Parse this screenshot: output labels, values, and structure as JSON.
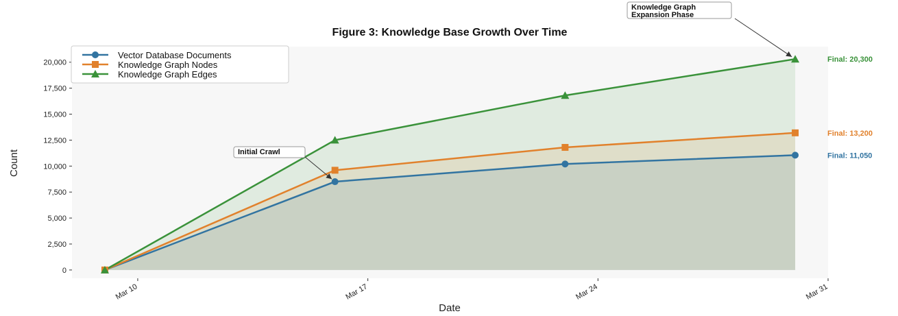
{
  "chart_data": {
    "type": "area",
    "title": "Figure 3: Knowledge Base Growth Over Time",
    "xlabel": "Date",
    "ylabel": "Count",
    "x": [
      "2024-03-09",
      "2024-03-16",
      "2024-03-23",
      "2024-03-30"
    ],
    "xlim": [
      "2024-03-08",
      "2024-03-31"
    ],
    "xticks": [
      {
        "date": "2024-03-10",
        "label": "Mar 10"
      },
      {
        "date": "2024-03-17",
        "label": "Mar 17"
      },
      {
        "date": "2024-03-24",
        "label": "Mar 24"
      },
      {
        "date": "2024-03-31",
        "label": "Mar 31"
      }
    ],
    "ylim": [
      -800,
      21500
    ],
    "yticks": [
      0,
      2500,
      5000,
      7500,
      10000,
      12500,
      15000,
      17500,
      20000
    ],
    "ytick_labels": [
      "0",
      "2,500",
      "5,000",
      "7,500",
      "10,000",
      "12,500",
      "15,000",
      "17,500",
      "20,000"
    ],
    "grid": false,
    "legend_position": "top-left",
    "series": [
      {
        "name": "Vector Database Documents",
        "values": [
          0,
          8500,
          10200,
          11050
        ],
        "color": "#3274a1",
        "marker": "circle",
        "final_label": "Final: 11,050"
      },
      {
        "name": "Knowledge Graph Nodes",
        "values": [
          0,
          9600,
          11800,
          13200
        ],
        "color": "#e1812c",
        "marker": "square",
        "final_label": "Final: 13,200"
      },
      {
        "name": "Knowledge Graph Edges",
        "values": [
          0,
          12500,
          16800,
          20300
        ],
        "color": "#3a923a",
        "marker": "triangle",
        "final_label": "Final: 20,300"
      }
    ],
    "annotations": [
      {
        "lines": [
          "Initial Crawl"
        ],
        "series_index": 0,
        "point_index": 1
      },
      {
        "lines": [
          "Knowledge Graph",
          "Expansion Phase"
        ],
        "series_index": 2,
        "point_index": 3
      }
    ]
  }
}
